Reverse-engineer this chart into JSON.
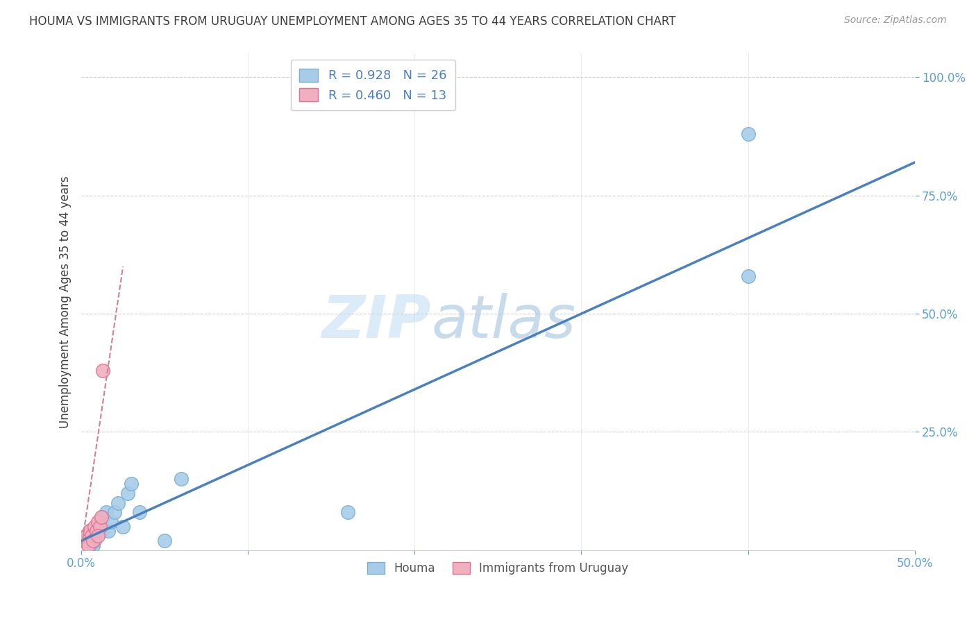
{
  "title": "HOUMA VS IMMIGRANTS FROM URUGUAY UNEMPLOYMENT AMONG AGES 35 TO 44 YEARS CORRELATION CHART",
  "source": "Source: ZipAtlas.com",
  "ylabel": "Unemployment Among Ages 35 to 44 years",
  "xlim": [
    0.0,
    0.5
  ],
  "ylim": [
    0.0,
    1.05
  ],
  "xticks": [
    0.0,
    0.1,
    0.2,
    0.3,
    0.4,
    0.5
  ],
  "yticks": [
    0.25,
    0.5,
    0.75,
    1.0
  ],
  "xticklabels_shown": [
    "0.0%",
    "50.0%"
  ],
  "xticklabels_pos": [
    0.0,
    0.5
  ],
  "yticklabels": [
    "25.0%",
    "50.0%",
    "75.0%",
    "100.0%"
  ],
  "houma_color": "#a8cce8",
  "houma_edge_color": "#7aafd4",
  "uruguay_color": "#f0b0c0",
  "uruguay_edge_color": "#e07090",
  "trend_houma_color": "#4a7fc0",
  "trend_uruguay_color": "#d08090",
  "legend_houma_label": "R = 0.928   N = 26",
  "legend_uruguay_label": "R = 0.460   N = 13",
  "legend_label_houma": "Houma",
  "legend_label_uruguay": "Immigrants from Uruguay",
  "houma_x": [
    0.003,
    0.004,
    0.005,
    0.006,
    0.007,
    0.008,
    0.009,
    0.01,
    0.011,
    0.012,
    0.013,
    0.015,
    0.016,
    0.018,
    0.02,
    0.022,
    0.025,
    0.028,
    0.03,
    0.035,
    0.05,
    0.06,
    0.16,
    0.4,
    0.4,
    0.005
  ],
  "houma_y": [
    0.03,
    0.02,
    0.04,
    0.03,
    0.01,
    0.02,
    0.04,
    0.05,
    0.06,
    0.04,
    0.07,
    0.08,
    0.04,
    0.06,
    0.08,
    0.1,
    0.05,
    0.12,
    0.14,
    0.08,
    0.02,
    0.15,
    0.08,
    0.88,
    0.58,
    0.01
  ],
  "uruguay_x": [
    0.002,
    0.003,
    0.004,
    0.005,
    0.006,
    0.007,
    0.008,
    0.009,
    0.01,
    0.011,
    0.012,
    0.013,
    0.01
  ],
  "uruguay_y": [
    0.02,
    0.03,
    0.01,
    0.04,
    0.03,
    0.02,
    0.05,
    0.04,
    0.06,
    0.05,
    0.07,
    0.38,
    0.03
  ],
  "houma_trend_x": [
    0.0,
    0.5
  ],
  "houma_trend_y": [
    0.02,
    0.82
  ],
  "uruguay_trend_x": [
    0.0,
    0.025
  ],
  "uruguay_trend_y": [
    0.005,
    0.6
  ],
  "watermark_zip": "ZIP",
  "watermark_atlas": "atlas",
  "background_color": "#ffffff",
  "title_color": "#404040",
  "axis_label_color": "#5a9fd4",
  "tick_color": "#7ab3e0",
  "grid_color": "#e0e0e0",
  "grid_dash_color": "#d0d0d0"
}
